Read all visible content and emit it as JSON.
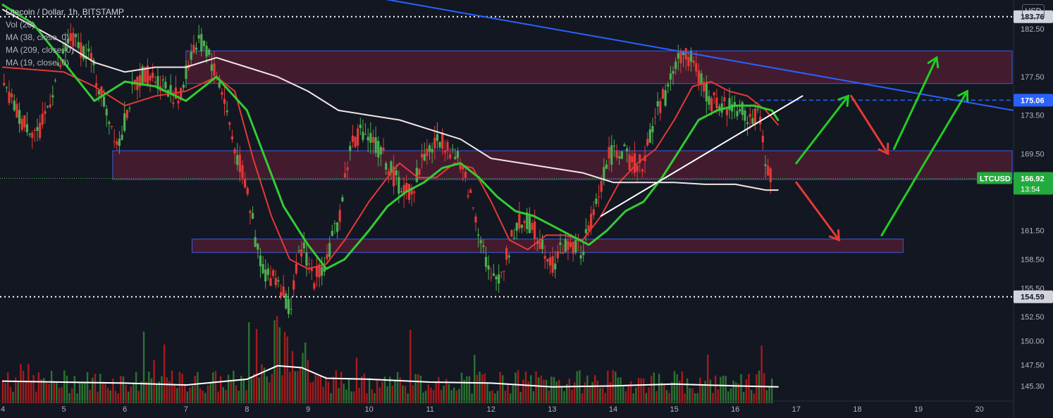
{
  "legend": {
    "title": "Litecoin / Dollar, 1h, BITSTAMP",
    "vol": "Vol (20)",
    "ma38": "MA (38, close, 0)",
    "ma209": "MA (209, close, 0)",
    "ma19": "MA (19, close, 0)"
  },
  "currency_button": "USD",
  "colors": {
    "background": "#131722",
    "up": "#26a69a",
    "down": "#ef5350",
    "candle_up": "#4caf50",
    "candle_down": "#e53935",
    "ma38_red": "#e53935",
    "ma209_white": "#f3e5e5",
    "ma19_green": "#33cc33",
    "zone_fill": "#6b1f3a",
    "zone_border": "#3b5bdb",
    "trendline_blue": "#2962ff",
    "last_price_bg": "#22ab3c",
    "level_label_bg": "#d1d4dc"
  },
  "chart_data": {
    "type": "candlestick",
    "symbol": "LTCUSD",
    "timeframe": "1h",
    "exchange": "BITSTAMP",
    "x_tick_labels": [
      "4",
      "5",
      "6",
      "7",
      "8",
      "9",
      "10",
      "11",
      "12",
      "13",
      "14",
      "15",
      "16",
      "17",
      "18",
      "19",
      "20"
    ],
    "y_tick_labels": [
      "182.50",
      "177.50",
      "173.50",
      "169.50",
      "161.50",
      "158.50",
      "155.50",
      "152.50",
      "150.00",
      "147.50",
      "145.30"
    ],
    "ylim": [
      143.5,
      185.5
    ],
    "price_labels": {
      "upper_level": "183.76",
      "target_level": "175.06",
      "last_price": "166.92",
      "lower_level": "154.59",
      "last_symbol": "LTCUSD",
      "countdown": "13:54"
    },
    "horizontal_levels": [
      183.76,
      154.59
    ],
    "dashed_level": 175.06,
    "last_price": 166.92,
    "price_path": [
      [
        4.0,
        176.5
      ],
      [
        4.3,
        173.0
      ],
      [
        4.6,
        171.5
      ],
      [
        4.9,
        178.0
      ],
      [
        5.1,
        181.5
      ],
      [
        5.4,
        180.0
      ],
      [
        5.7,
        174.0
      ],
      [
        5.9,
        170.5
      ],
      [
        6.1,
        175.5
      ],
      [
        6.3,
        178.0
      ],
      [
        6.6,
        177.0
      ],
      [
        6.9,
        175.0
      ],
      [
        7.1,
        180.5
      ],
      [
        7.3,
        181.0
      ],
      [
        7.6,
        176.0
      ],
      [
        7.8,
        170.0
      ],
      [
        8.0,
        166.0
      ],
      [
        8.15,
        160.0
      ],
      [
        8.3,
        157.0
      ],
      [
        8.5,
        156.5
      ],
      [
        8.7,
        153.5
      ],
      [
        8.9,
        160.0
      ],
      [
        9.1,
        156.5
      ],
      [
        9.3,
        158.5
      ],
      [
        9.5,
        162.5
      ],
      [
        9.7,
        170.5
      ],
      [
        9.9,
        172.0
      ],
      [
        10.1,
        170.5
      ],
      [
        10.3,
        168.5
      ],
      [
        10.5,
        166.0
      ],
      [
        10.7,
        165.5
      ],
      [
        10.9,
        169.5
      ],
      [
        11.2,
        171.0
      ],
      [
        11.4,
        169.5
      ],
      [
        11.6,
        166.5
      ],
      [
        11.85,
        160.5
      ],
      [
        12.0,
        156.0
      ],
      [
        12.2,
        157.5
      ],
      [
        12.4,
        162.0
      ],
      [
        12.6,
        162.5
      ],
      [
        12.85,
        160.0
      ],
      [
        13.0,
        158.0
      ],
      [
        13.2,
        160.0
      ],
      [
        13.5,
        159.5
      ],
      [
        13.7,
        163.5
      ],
      [
        13.9,
        169.0
      ],
      [
        14.1,
        170.0
      ],
      [
        14.3,
        168.5
      ],
      [
        14.5,
        168.5
      ],
      [
        14.7,
        174.0
      ],
      [
        14.9,
        176.0
      ],
      [
        15.0,
        179.0
      ],
      [
        15.2,
        180.0
      ],
      [
        15.4,
        177.5
      ],
      [
        15.6,
        175.0
      ],
      [
        15.8,
        174.5
      ],
      [
        16.0,
        174.5
      ],
      [
        16.2,
        173.5
      ],
      [
        16.4,
        173.0
      ],
      [
        16.55,
        167.0
      ]
    ],
    "ma_series": [
      {
        "name": "MA (38, close, 0)",
        "color": "#e53935",
        "points": [
          [
            4.0,
            178.5
          ],
          [
            5.0,
            178.0
          ],
          [
            5.5,
            176.5
          ],
          [
            6.0,
            174.5
          ],
          [
            6.5,
            175.5
          ],
          [
            7.0,
            176.0
          ],
          [
            7.5,
            177.5
          ],
          [
            7.8,
            176.0
          ],
          [
            8.1,
            169.0
          ],
          [
            8.4,
            163.0
          ],
          [
            8.7,
            158.5
          ],
          [
            9.0,
            157.5
          ],
          [
            9.3,
            158.0
          ],
          [
            9.6,
            160.5
          ],
          [
            10.0,
            164.5
          ],
          [
            10.3,
            167.0
          ],
          [
            10.5,
            168.5
          ],
          [
            10.8,
            167.0
          ],
          [
            11.1,
            167.0
          ],
          [
            11.4,
            168.5
          ],
          [
            11.7,
            168.0
          ],
          [
            12.0,
            164.5
          ],
          [
            12.3,
            160.5
          ],
          [
            12.6,
            159.5
          ],
          [
            12.9,
            161.0
          ],
          [
            13.2,
            161.0
          ],
          [
            13.5,
            160.5
          ],
          [
            13.8,
            163.0
          ],
          [
            14.1,
            166.5
          ],
          [
            14.4,
            168.5
          ],
          [
            14.7,
            170.0
          ],
          [
            15.0,
            173.0
          ],
          [
            15.3,
            176.5
          ],
          [
            15.6,
            177.0
          ],
          [
            15.9,
            176.0
          ],
          [
            16.2,
            175.5
          ],
          [
            16.5,
            174.0
          ],
          [
            16.7,
            172.5
          ]
        ]
      },
      {
        "name": "MA (209, close, 0)",
        "color": "#f3e5e5",
        "points": [
          [
            4.0,
            184.5
          ],
          [
            5.0,
            181.0
          ],
          [
            5.5,
            179.0
          ],
          [
            6.0,
            178.0
          ],
          [
            6.5,
            178.5
          ],
          [
            7.0,
            178.5
          ],
          [
            7.5,
            179.5
          ],
          [
            8.0,
            178.5
          ],
          [
            8.5,
            177.5
          ],
          [
            9.0,
            176.0
          ],
          [
            9.5,
            174.0
          ],
          [
            10.0,
            173.5
          ],
          [
            10.5,
            173.0
          ],
          [
            11.0,
            172.0
          ],
          [
            11.5,
            171.0
          ],
          [
            12.0,
            169.0
          ],
          [
            12.5,
            168.5
          ],
          [
            13.0,
            168.0
          ],
          [
            13.5,
            167.5
          ],
          [
            14.0,
            166.5
          ],
          [
            14.5,
            166.5
          ],
          [
            15.0,
            166.5
          ],
          [
            15.5,
            166.3
          ],
          [
            16.0,
            166.3
          ],
          [
            16.5,
            165.7
          ],
          [
            16.7,
            165.7
          ]
        ]
      },
      {
        "name": "MA (19, close, 0)",
        "color": "#33cc33",
        "points": [
          [
            4.0,
            185.0
          ],
          [
            4.5,
            183.0
          ],
          [
            5.0,
            179.0
          ],
          [
            5.5,
            175.0
          ],
          [
            6.0,
            177.0
          ],
          [
            6.5,
            176.5
          ],
          [
            7.0,
            175.0
          ],
          [
            7.5,
            177.5
          ],
          [
            8.0,
            174.0
          ],
          [
            8.3,
            169.0
          ],
          [
            8.6,
            164.0
          ],
          [
            9.0,
            160.0
          ],
          [
            9.3,
            157.5
          ],
          [
            9.6,
            158.5
          ],
          [
            10.0,
            161.5
          ],
          [
            10.3,
            164.0
          ],
          [
            10.6,
            165.5
          ],
          [
            10.9,
            166.5
          ],
          [
            11.2,
            168.0
          ],
          [
            11.5,
            168.5
          ],
          [
            11.8,
            167.0
          ],
          [
            12.1,
            165.0
          ],
          [
            12.4,
            163.5
          ],
          [
            12.7,
            163.0
          ],
          [
            13.0,
            162.0
          ],
          [
            13.3,
            161.0
          ],
          [
            13.6,
            160.0
          ],
          [
            13.9,
            161.5
          ],
          [
            14.2,
            163.5
          ],
          [
            14.5,
            164.5
          ],
          [
            14.8,
            167.0
          ],
          [
            15.1,
            170.0
          ],
          [
            15.4,
            173.0
          ],
          [
            15.7,
            174.0
          ],
          [
            16.0,
            174.5
          ],
          [
            16.3,
            174.5
          ],
          [
            16.6,
            174.0
          ],
          [
            16.7,
            173.0
          ]
        ]
      }
    ],
    "zones": [
      {
        "x": [
          7.0,
          21.0
        ],
        "y": [
          176.8,
          180.2
        ]
      },
      {
        "x": [
          5.8,
          21.0
        ],
        "y": [
          166.8,
          169.8
        ]
      },
      {
        "x": [
          7.1,
          18.75
        ],
        "y": [
          159.2,
          160.6
        ]
      }
    ],
    "trendlines": [
      {
        "color": "#2962ff",
        "points": [
          [
            9.0,
            187.0
          ],
          [
            21.0,
            173.5
          ]
        ]
      },
      {
        "color": "#ffffff",
        "points": [
          [
            13.8,
            163.0
          ],
          [
            17.1,
            175.5
          ]
        ]
      }
    ],
    "scenario_arrows": [
      {
        "color": "#22cc22",
        "points": [
          [
            17.0,
            168.5
          ],
          [
            17.85,
            175.5
          ]
        ]
      },
      {
        "color": "#e53935",
        "points": [
          [
            17.9,
            175.5
          ],
          [
            18.5,
            169.5
          ]
        ]
      },
      {
        "color": "#22cc22",
        "points": [
          [
            18.6,
            170.0
          ],
          [
            19.3,
            179.5
          ]
        ]
      },
      {
        "color": "#e53935",
        "points": [
          [
            17.0,
            166.5
          ],
          [
            17.7,
            160.5
          ]
        ]
      },
      {
        "color": "#22cc22",
        "points": [
          [
            18.4,
            161.0
          ],
          [
            19.8,
            176.0
          ]
        ]
      }
    ],
    "volume_avg": [
      [
        4.0,
        145.8
      ],
      [
        6.0,
        145.6
      ],
      [
        7.0,
        145.4
      ],
      [
        8.0,
        146.0
      ],
      [
        8.5,
        147.4
      ],
      [
        8.9,
        147.2
      ],
      [
        9.3,
        146.1
      ],
      [
        10.0,
        146.0
      ],
      [
        11.0,
        145.7
      ],
      [
        12.0,
        145.6
      ],
      [
        13.0,
        145.2
      ],
      [
        14.0,
        145.3
      ],
      [
        15.0,
        145.5
      ],
      [
        16.0,
        145.3
      ],
      [
        16.7,
        145.2
      ]
    ]
  }
}
